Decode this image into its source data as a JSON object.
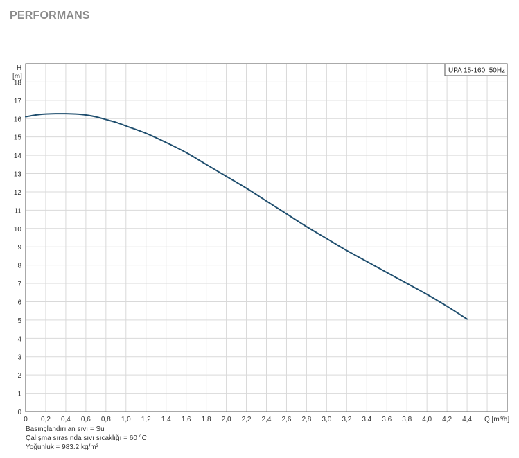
{
  "section_title": "PERFORMANS",
  "chart_data": {
    "type": "line",
    "legend_label": "UPA 15-160, 50Hz",
    "legend_position": "top-right",
    "y_label_top": "H",
    "y_label_unit": "[m]",
    "x_label": "Q [m³/h]",
    "xlim": [
      0,
      4.4
    ],
    "ylim": [
      0,
      19
    ],
    "x_ticks": [
      "0",
      "0,2",
      "0,4",
      "0,6",
      "0,8",
      "1,0",
      "1,2",
      "1,4",
      "1,6",
      "1,8",
      "2,0",
      "2,2",
      "2,4",
      "2,6",
      "2,8",
      "3,0",
      "3,2",
      "3,4",
      "3,6",
      "3,8",
      "4,0",
      "4,2",
      "4,4"
    ],
    "y_ticks": [
      "0",
      "1",
      "2",
      "3",
      "4",
      "5",
      "6",
      "7",
      "8",
      "9",
      "10",
      "11",
      "12",
      "13",
      "14",
      "15",
      "16",
      "17",
      "18"
    ],
    "grid": true,
    "series": [
      {
        "name": "UPA 15-160, 50Hz",
        "color": "#1f4e6e",
        "x": [
          0,
          0.1,
          0.2,
          0.3,
          0.4,
          0.5,
          0.6,
          0.7,
          0.8,
          0.9,
          1.0,
          1.2,
          1.4,
          1.6,
          1.8,
          2.0,
          2.2,
          2.4,
          2.6,
          2.8,
          3.0,
          3.2,
          3.4,
          3.6,
          3.8,
          4.0,
          4.2,
          4.4
        ],
        "y": [
          16.1,
          16.2,
          16.25,
          16.27,
          16.27,
          16.25,
          16.2,
          16.1,
          15.95,
          15.8,
          15.6,
          15.2,
          14.7,
          14.15,
          13.5,
          12.85,
          12.2,
          11.5,
          10.8,
          10.1,
          9.45,
          8.8,
          8.2,
          7.6,
          7.0,
          6.4,
          5.75,
          5.05
        ]
      }
    ]
  },
  "notes": {
    "line1": "Basınçlandırılan sıvı = Su",
    "line2": "Çalışma sırasında sıvı sıcaklığı = 60 °C",
    "line3": "Yoğunluk = 983.2 kg/m³"
  }
}
